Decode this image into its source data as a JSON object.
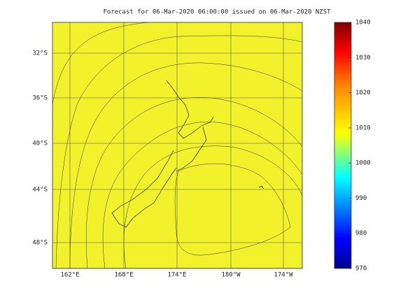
{
  "title": "Forecast for 06-Mar-2020 06:00:00 issued on 06-Mar-2020 NZST",
  "map": {
    "lat_labels": [
      "32°S",
      "36°S",
      "40°S",
      "44°S",
      "48°S"
    ],
    "lon_labels": [
      "162°E",
      "168°E",
      "174°E",
      "180°W",
      "174°W"
    ]
  },
  "colorbar": {
    "lim": [
      970,
      1040
    ],
    "ticks": [
      970,
      980,
      990,
      1000,
      1010,
      1020,
      1030,
      1040
    ]
  }
}
